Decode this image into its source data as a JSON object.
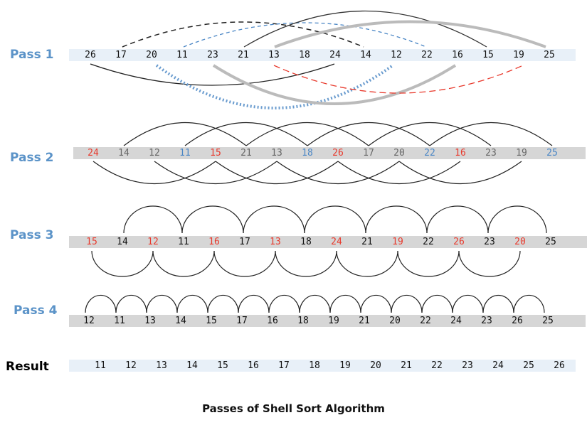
{
  "title": "Passes of Shell Sort Algorithm",
  "colors": {
    "label_blue": "#5b93c8",
    "red": "#e8392c",
    "blue": "#4a86c5",
    "gray_text": "#666666",
    "band_light": "#e8f0f8",
    "band_gray": "#d6d6d6"
  },
  "rows": [
    {
      "label": "Pass 1",
      "band": "light",
      "values": [
        "26",
        "17",
        "20",
        "11",
        "23",
        "21",
        "13",
        "18",
        "24",
        "14",
        "12",
        "22",
        "16",
        "15",
        "19",
        "25"
      ],
      "colors": [
        "k",
        "k",
        "k",
        "k",
        "k",
        "k",
        "k",
        "k",
        "k",
        "k",
        "k",
        "k",
        "k",
        "k",
        "k",
        "k"
      ]
    },
    {
      "label": "Pass 2",
      "band": "gray",
      "values": [
        "24",
        "14",
        "12",
        "11",
        "15",
        "21",
        "13",
        "18",
        "26",
        "17",
        "20",
        "22",
        "16",
        "23",
        "19",
        "25"
      ],
      "colors": [
        "r",
        "g",
        "g",
        "b",
        "r",
        "g",
        "g",
        "b",
        "r",
        "g",
        "g",
        "b",
        "r",
        "g",
        "g",
        "b"
      ]
    },
    {
      "label": "Pass 3",
      "band": "gray",
      "values": [
        "15",
        "14",
        "12",
        "11",
        "16",
        "17",
        "13",
        "18",
        "24",
        "21",
        "19",
        "22",
        "26",
        "23",
        "20",
        "25"
      ],
      "colors": [
        "r",
        "k",
        "r",
        "k",
        "r",
        "k",
        "r",
        "k",
        "r",
        "k",
        "r",
        "k",
        "r",
        "k",
        "r",
        "k"
      ]
    },
    {
      "label": "Pass 4",
      "band": "gray",
      "values": [
        "12",
        "11",
        "13",
        "14",
        "15",
        "17",
        "16",
        "18",
        "19",
        "21",
        "20",
        "22",
        "24",
        "23",
        "26",
        "25"
      ],
      "colors": [
        "k",
        "k",
        "k",
        "k",
        "k",
        "k",
        "k",
        "k",
        "k",
        "k",
        "k",
        "k",
        "k",
        "k",
        "k",
        "k"
      ]
    },
    {
      "label": "Result",
      "band": "light",
      "values": [
        "11",
        "12",
        "13",
        "14",
        "15",
        "16",
        "17",
        "18",
        "19",
        "20",
        "21",
        "22",
        "23",
        "24",
        "25",
        "26"
      ],
      "colors": [
        "k",
        "k",
        "k",
        "k",
        "k",
        "k",
        "k",
        "k",
        "k",
        "k",
        "k",
        "k",
        "k",
        "k",
        "k",
        "k"
      ]
    }
  ]
}
